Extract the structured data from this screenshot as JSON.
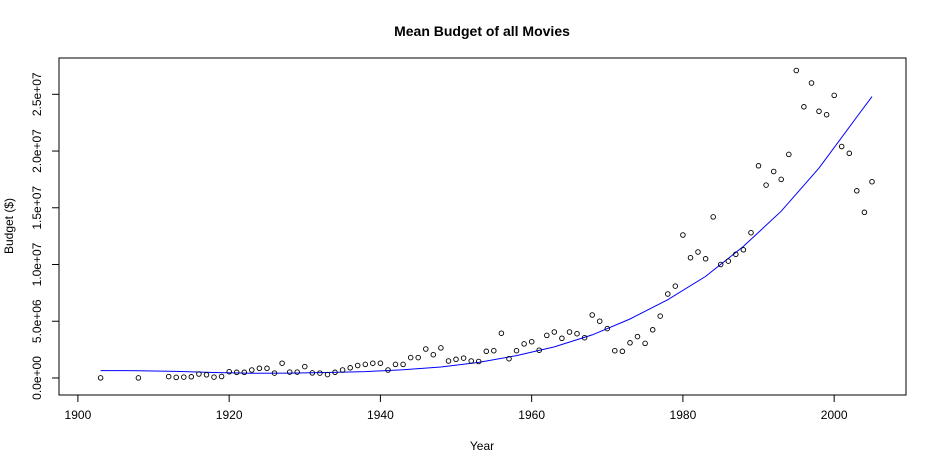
{
  "chart_data": {
    "type": "scatter",
    "title": "Mean Budget of all Movies",
    "xlabel": "Year",
    "ylabel": "Budget ($)",
    "xlim": [
      1897.5,
      2009.5
    ],
    "ylim": [
      -1500000,
      28200000
    ],
    "x_ticks": [
      1900,
      1920,
      1940,
      1960,
      1980,
      2000
    ],
    "x_tick_labels": [
      "1900",
      "1920",
      "1940",
      "1960",
      "1980",
      "2000"
    ],
    "y_ticks": [
      0,
      5000000,
      10000000,
      15000000,
      20000000,
      25000000
    ],
    "y_tick_labels": [
      "0.0e+00",
      "5.0e+06",
      "1.0e+07",
      "1.5e+07",
      "2.0e+07",
      "2.5e+07"
    ],
    "grid": false,
    "point_color": "#000000",
    "line_color": "#0000ff",
    "series": [
      {
        "type": "scatter",
        "points": [
          [
            1903,
            5000
          ],
          [
            1908,
            10000
          ],
          [
            1912,
            120000
          ],
          [
            1913,
            50000
          ],
          [
            1914,
            80000
          ],
          [
            1915,
            100000
          ],
          [
            1916,
            350000
          ],
          [
            1917,
            280000
          ],
          [
            1918,
            80000
          ],
          [
            1919,
            130000
          ],
          [
            1920,
            550000
          ],
          [
            1921,
            500000
          ],
          [
            1922,
            500000
          ],
          [
            1923,
            700000
          ],
          [
            1924,
            850000
          ],
          [
            1925,
            850000
          ],
          [
            1926,
            430000
          ],
          [
            1927,
            1300000
          ],
          [
            1928,
            520000
          ],
          [
            1929,
            520000
          ],
          [
            1930,
            1000000
          ],
          [
            1931,
            450000
          ],
          [
            1932,
            430000
          ],
          [
            1933,
            300000
          ],
          [
            1934,
            500000
          ],
          [
            1935,
            700000
          ],
          [
            1936,
            900000
          ],
          [
            1937,
            1100000
          ],
          [
            1938,
            1200000
          ],
          [
            1939,
            1300000
          ],
          [
            1940,
            1300000
          ],
          [
            1941,
            700000
          ],
          [
            1942,
            1200000
          ],
          [
            1943,
            1200000
          ],
          [
            1944,
            1800000
          ],
          [
            1945,
            1800000
          ],
          [
            1946,
            2550000
          ],
          [
            1947,
            2050000
          ],
          [
            1948,
            2650000
          ],
          [
            1949,
            1500000
          ],
          [
            1950,
            1650000
          ],
          [
            1951,
            1750000
          ],
          [
            1952,
            1500000
          ],
          [
            1953,
            1450000
          ],
          [
            1954,
            2350000
          ],
          [
            1955,
            2400000
          ],
          [
            1956,
            3950000
          ],
          [
            1957,
            1700000
          ],
          [
            1958,
            2400000
          ],
          [
            1959,
            3000000
          ],
          [
            1960,
            3200000
          ],
          [
            1961,
            2450000
          ],
          [
            1962,
            3750000
          ],
          [
            1963,
            4050000
          ],
          [
            1964,
            3500000
          ],
          [
            1965,
            4050000
          ],
          [
            1966,
            3900000
          ],
          [
            1967,
            3550000
          ],
          [
            1968,
            5550000
          ],
          [
            1969,
            5000000
          ],
          [
            1970,
            4350000
          ],
          [
            1971,
            2400000
          ],
          [
            1972,
            2350000
          ],
          [
            1973,
            3100000
          ],
          [
            1974,
            3650000
          ],
          [
            1975,
            3050000
          ],
          [
            1976,
            4250000
          ],
          [
            1977,
            5450000
          ],
          [
            1978,
            7400000
          ],
          [
            1979,
            8100000
          ],
          [
            1980,
            12600000
          ],
          [
            1981,
            10600000
          ],
          [
            1982,
            11100000
          ],
          [
            1983,
            10500000
          ],
          [
            1984,
            14200000
          ],
          [
            1985,
            10000000
          ],
          [
            1986,
            10300000
          ],
          [
            1987,
            10900000
          ],
          [
            1988,
            11300000
          ],
          [
            1989,
            12800000
          ],
          [
            1990,
            18700000
          ],
          [
            1991,
            17000000
          ],
          [
            1992,
            18200000
          ],
          [
            1993,
            17500000
          ],
          [
            1994,
            19700000
          ],
          [
            1995,
            27100000
          ],
          [
            1996,
            23900000
          ],
          [
            1997,
            26000000
          ],
          [
            1998,
            23500000
          ],
          [
            1999,
            23200000
          ],
          [
            2000,
            24900000
          ],
          [
            2001,
            20400000
          ],
          [
            2002,
            19800000
          ],
          [
            2003,
            16500000
          ],
          [
            2004,
            14600000
          ],
          [
            2005,
            17300000
          ]
        ]
      },
      {
        "type": "line",
        "points": [
          [
            1903,
            650000
          ],
          [
            1908,
            640000
          ],
          [
            1913,
            580000
          ],
          [
            1918,
            480000
          ],
          [
            1923,
            420000
          ],
          [
            1928,
            430000
          ],
          [
            1933,
            480000
          ],
          [
            1938,
            560000
          ],
          [
            1943,
            720000
          ],
          [
            1948,
            970000
          ],
          [
            1953,
            1370000
          ],
          [
            1958,
            1970000
          ],
          [
            1963,
            2740000
          ],
          [
            1968,
            3800000
          ],
          [
            1973,
            5200000
          ],
          [
            1978,
            6900000
          ],
          [
            1983,
            8950000
          ],
          [
            1988,
            11600000
          ],
          [
            1993,
            14700000
          ],
          [
            1998,
            18500000
          ],
          [
            2003,
            23000000
          ],
          [
            2005,
            24800000
          ]
        ]
      }
    ]
  }
}
